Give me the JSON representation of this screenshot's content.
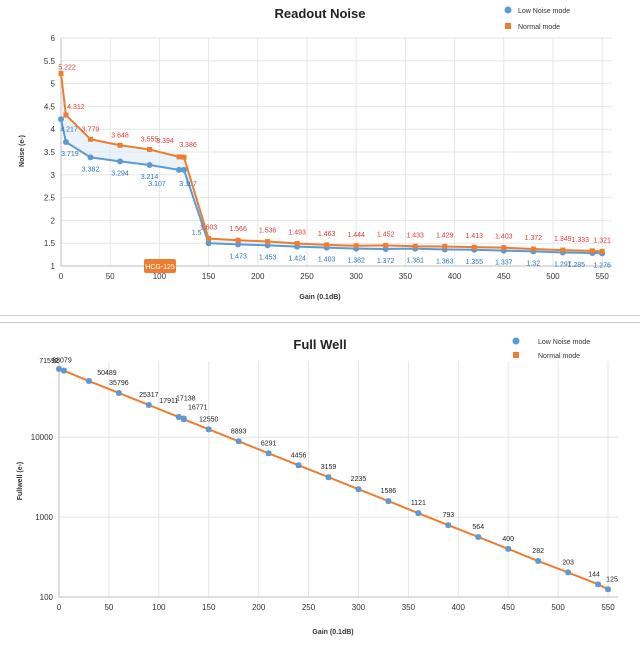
{
  "colors": {
    "low": "#5b9bd5",
    "normal": "#ed7d31",
    "normal_label": "#e03c31",
    "low_label": "#2e75b6",
    "marker_box": "#ed7d31"
  },
  "legend": {
    "low": "Low Noise mode",
    "normal": "Normal mode"
  },
  "chart_data": [
    {
      "type": "line",
      "title": "Readout Noise",
      "xlabel": "Gain (0.1dB)",
      "ylabel": "Noise (e-)",
      "xlim": [
        0,
        560
      ],
      "ylim": [
        1,
        6
      ],
      "xticks": [
        0,
        50,
        100,
        150,
        200,
        250,
        300,
        350,
        400,
        450,
        500,
        550
      ],
      "yticks": [
        1,
        1.5,
        2,
        2.5,
        3,
        3.5,
        4,
        4.5,
        5,
        5.5,
        6
      ],
      "ytick_labels": [
        "1",
        "1.5",
        "2",
        "2.5",
        "3",
        "3.5",
        "4",
        "4.5",
        "5",
        "5.5",
        "6"
      ],
      "legend_position": "top-right",
      "annotation": "HCG-125",
      "series": [
        {
          "name": "Low Noise mode",
          "x": [
            0,
            5,
            30,
            60,
            90,
            120,
            125,
            150,
            180,
            210,
            240,
            270,
            300,
            330,
            360,
            390,
            420,
            450,
            480,
            510,
            540,
            550
          ],
          "y": [
            4.217,
            3.719,
            3.382,
            3.294,
            3.214,
            3.107,
            3.107,
            1.5,
            1.473,
            1.453,
            1.424,
            1.403,
            1.382,
            1.372,
            1.381,
            1.363,
            1.355,
            1.337,
            1.32,
            1.297,
            1.285,
            1.276
          ],
          "labels": [
            "4.217",
            "3.719",
            "3.382",
            "3.294",
            "3.214",
            "3.107",
            "3.107",
            "1.5",
            "1.473",
            "1.453",
            "1.424",
            "1.403",
            "1.382",
            "1.372",
            "1.381",
            "1.363",
            "1.355",
            "1.337",
            "1.32",
            "1.297",
            "1.285",
            "1.276"
          ]
        },
        {
          "name": "Normal mode",
          "x": [
            0,
            5,
            30,
            60,
            90,
            120,
            125,
            150,
            180,
            210,
            240,
            270,
            300,
            330,
            360,
            390,
            420,
            450,
            480,
            510,
            540,
            550
          ],
          "y": [
            5.222,
            4.312,
            3.779,
            3.648,
            3.555,
            3.394,
            3.386,
            1.603,
            1.566,
            1.536,
            1.493,
            1.463,
            1.444,
            1.452,
            1.433,
            1.429,
            1.413,
            1.403,
            1.372,
            1.349,
            1.333,
            1.321
          ],
          "labels": [
            "5.222",
            "4.312",
            "3.779",
            "3.648",
            "3.555",
            "3.394",
            "3.386",
            "1.603",
            "1.566",
            "1.536",
            "1.493",
            "1.463",
            "1.444",
            "1.452",
            "1.433",
            "1.429",
            "1.413",
            "1.403",
            "1.372",
            "1.349",
            "1.333",
            "1.321"
          ]
        }
      ]
    },
    {
      "type": "line",
      "title": "Full Well",
      "xlabel": "Gain (0.1dB)",
      "ylabel": "Fullwell (e-)",
      "xlim": [
        0,
        560
      ],
      "ylim": [
        100,
        90000
      ],
      "yscale": "log",
      "xticks": [
        0,
        50,
        100,
        150,
        200,
        250,
        300,
        350,
        400,
        450,
        500,
        550
      ],
      "yticks": [
        100,
        1000,
        10000
      ],
      "ytick_labels": [
        "100",
        "1000",
        "10000"
      ],
      "legend_position": "top-right",
      "series": [
        {
          "name": "Low Noise mode",
          "x": [
            0,
            5,
            30,
            60,
            90,
            120,
            125,
            125,
            150,
            180,
            210,
            240,
            270,
            300,
            330,
            360,
            390,
            420,
            450,
            480,
            510,
            540,
            550
          ],
          "y": [
            71592,
            68079,
            50489,
            35796,
            25317,
            17911,
            17138,
            16771,
            12550,
            8893,
            6291,
            4456,
            3159,
            2235,
            1586,
            1121,
            793,
            564,
            400,
            282,
            203,
            144,
            125
          ],
          "labels": [
            "71592",
            "68079",
            "50489",
            "35796",
            "25317",
            "17911",
            "17138",
            "16771",
            "12550",
            "8893",
            "6291",
            "4456",
            "3159",
            "2235",
            "1586",
            "1121",
            "793",
            "564",
            "400",
            "282",
            "203",
            "144",
            "125"
          ]
        },
        {
          "name": "Normal mode",
          "x": [
            0,
            5,
            30,
            60,
            90,
            120,
            125,
            125,
            150,
            180,
            210,
            240,
            270,
            300,
            330,
            360,
            390,
            420,
            450,
            480,
            510,
            540,
            550
          ],
          "y": [
            71592,
            68079,
            50489,
            35796,
            25317,
            17911,
            17138,
            16771,
            12550,
            8893,
            6291,
            4456,
            3159,
            2235,
            1586,
            1121,
            793,
            564,
            400,
            282,
            203,
            144,
            125
          ]
        }
      ]
    }
  ]
}
